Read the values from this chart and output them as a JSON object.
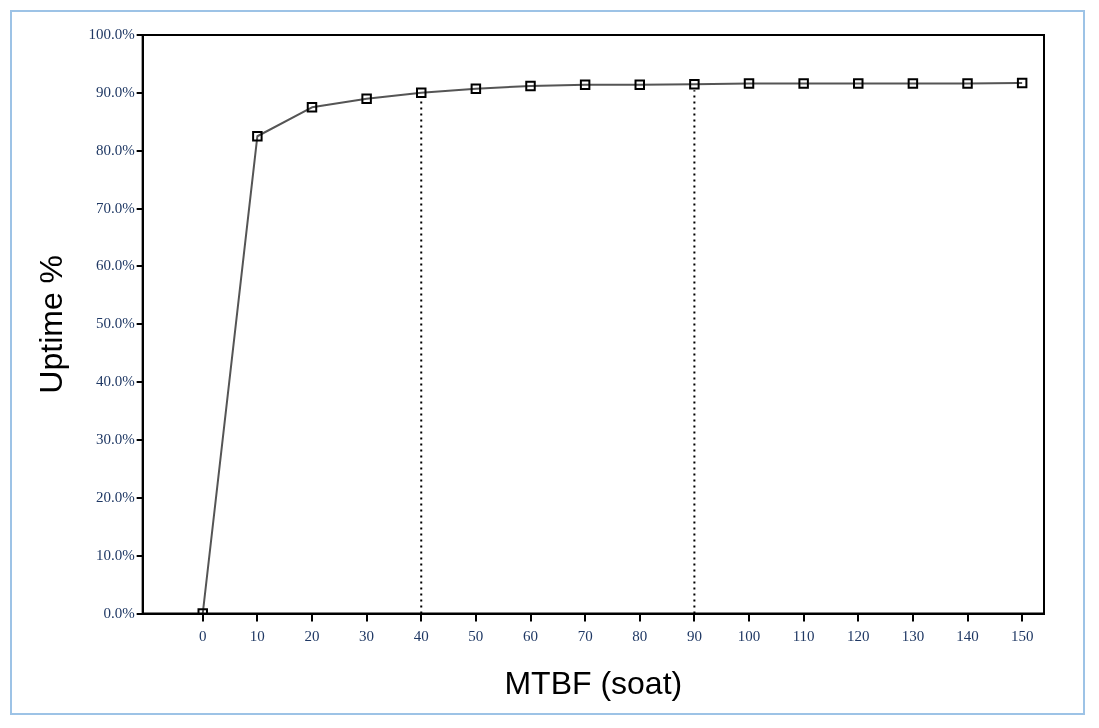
{
  "chart_data": {
    "type": "line",
    "xlabel": "MTBF (soat)",
    "ylabel": "Uptime %",
    "x": [
      0,
      10,
      20,
      30,
      40,
      50,
      60,
      70,
      80,
      90,
      100,
      110,
      120,
      130,
      140,
      150
    ],
    "series": [
      {
        "color": "#555555",
        "values": [
          0,
          82.5,
          87.5,
          89,
          90,
          90.7,
          91.2,
          91.4,
          91.4,
          91.5,
          91.6,
          91.6,
          91.6,
          91.6,
          91.6,
          91.7
        ]
      }
    ],
    "xlim": [
      -11,
      154
    ],
    "xticks": [
      0,
      10,
      20,
      30,
      40,
      50,
      60,
      70,
      80,
      90,
      100,
      110,
      120,
      130,
      140,
      150
    ],
    "ylim": [
      0,
      100
    ],
    "yticks": [
      {
        "value": 0,
        "label": "0.0%"
      },
      {
        "value": 10,
        "label": "10.0%"
      },
      {
        "value": 20,
        "label": "20.0%"
      },
      {
        "value": 30,
        "label": "30.0%"
      },
      {
        "value": 40,
        "label": "40.0%"
      },
      {
        "value": 50,
        "label": "50.0%"
      },
      {
        "value": 60,
        "label": "60.0%"
      },
      {
        "value": 70,
        "label": "70.0%"
      },
      {
        "value": 80,
        "label": "80.0%"
      },
      {
        "value": 90,
        "label": "90.0%"
      },
      {
        "value": 100,
        "label": "100.0%"
      }
    ],
    "ref_lines": [
      {
        "axis": "x",
        "value": 40,
        "line_style": "dotted",
        "color": "#000000"
      },
      {
        "axis": "x",
        "value": 90,
        "line_style": "dotted",
        "color": "#000000"
      }
    ],
    "grid": false,
    "legend": false,
    "marker": "square",
    "line_style": "solid"
  }
}
